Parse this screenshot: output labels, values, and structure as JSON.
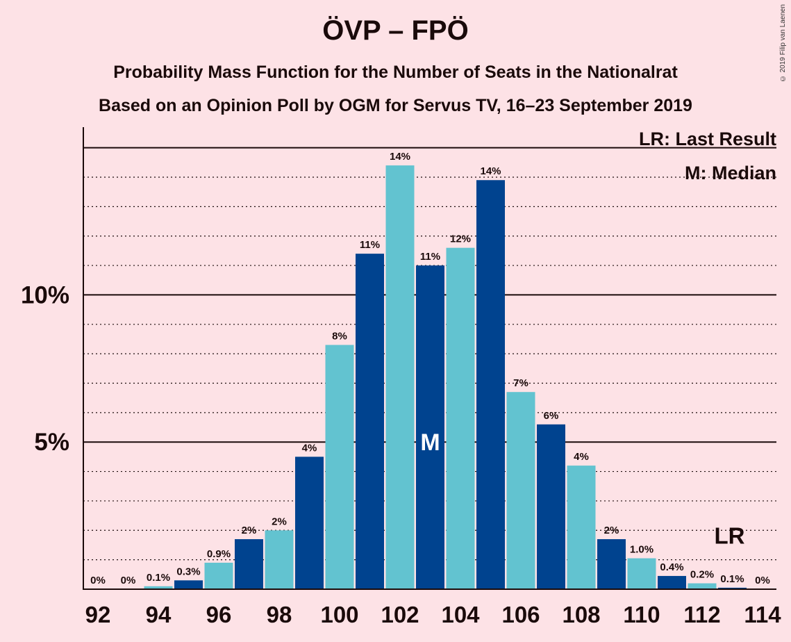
{
  "title": "ÖVP – FPÖ",
  "subtitle1": "Probability Mass Function for the Number of Seats in the Nationalrat",
  "subtitle2": "Based on an Opinion Poll by OGM for Servus TV, 16–23 September 2019",
  "copyright": "© 2019 Filip van Laenen",
  "legend": {
    "lr": "LR: Last Result",
    "m": "M: Median"
  },
  "colors": {
    "dark": "#00438f",
    "light": "#62c3d0",
    "background": "#fde2e6"
  },
  "chart_data": {
    "type": "bar",
    "categories": [
      92,
      93,
      94,
      95,
      96,
      97,
      98,
      99,
      100,
      101,
      102,
      103,
      104,
      105,
      106,
      107,
      108,
      109,
      110,
      111,
      112,
      113,
      114
    ],
    "values": [
      0,
      0,
      0.1,
      0.3,
      0.9,
      1.7,
      2.0,
      4.5,
      8.3,
      11.4,
      14.4,
      11.0,
      11.6,
      13.9,
      6.7,
      5.6,
      4.2,
      1.7,
      1.05,
      0.45,
      0.2,
      0.05,
      0
    ],
    "labels": [
      "0%",
      "0%",
      "0.1%",
      "0.3%",
      "0.9%",
      "2%",
      "2%",
      "4%",
      "8%",
      "11%",
      "14%",
      "11%",
      "12%",
      "14%",
      "7%",
      "6%",
      "4%",
      "2%",
      "1.0%",
      "0.4%",
      "0.2%",
      "0.1%",
      "0%"
    ],
    "x_tick_labels": [
      "92",
      "94",
      "96",
      "98",
      "100",
      "102",
      "104",
      "106",
      "108",
      "110",
      "112",
      "114"
    ],
    "y_tick_labels": [
      {
        "value": 5,
        "label": "5%"
      },
      {
        "value": 10,
        "label": "10%"
      }
    ],
    "ylim": [
      0,
      15.7
    ],
    "median_seat": 103,
    "median_label": "M",
    "last_result_seat": 113,
    "last_result_label": "LR",
    "grid": true
  }
}
